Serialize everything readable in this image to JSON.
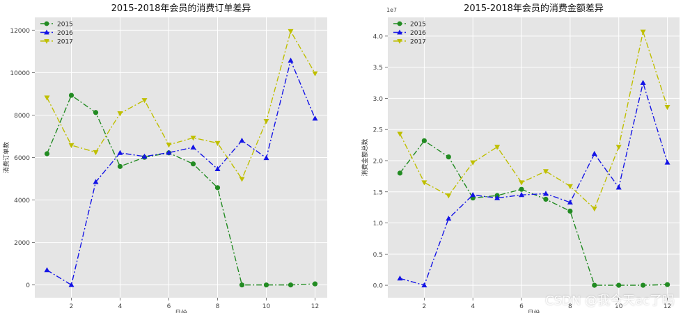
{
  "chart_data": [
    {
      "type": "line",
      "title": "2015-2018年会员的消费订单差异",
      "xlabel": "月份",
      "ylabel": "消费订单数",
      "x": [
        1,
        2,
        3,
        4,
        5,
        6,
        7,
        8,
        9,
        10,
        11,
        12
      ],
      "xticks": [
        "2",
        "4",
        "6",
        "8",
        "10",
        "12"
      ],
      "yticks": [
        "0",
        "2000",
        "4000",
        "6000",
        "8000",
        "10000",
        "12000"
      ],
      "xlim": [
        0.5,
        12.5
      ],
      "ylim": [
        -600,
        12600
      ],
      "grid": true,
      "legend": "top-left",
      "series": [
        {
          "name": "2015",
          "color": "#228B22",
          "marker": "circle",
          "values": [
            6180,
            8930,
            8120,
            5580,
            6010,
            6220,
            5700,
            4580,
            0,
            0,
            0,
            50
          ]
        },
        {
          "name": "2016",
          "color": "#1414e6",
          "marker": "triangle-up",
          "values": [
            700,
            0,
            4850,
            6220,
            6050,
            6230,
            6480,
            5460,
            6800,
            5980,
            10570,
            7840
          ]
        },
        {
          "name": "2017",
          "color": "#bfbf00",
          "marker": "triangle-down",
          "values": [
            8820,
            6580,
            6250,
            8080,
            8700,
            6600,
            6930,
            6680,
            4990,
            7720,
            11950,
            9960
          ]
        }
      ]
    },
    {
      "type": "line",
      "title": "2015-2018年会员的消费金额差异",
      "xlabel": "月份",
      "ylabel": "消费金额总数",
      "scale_label": "1e7",
      "x": [
        1,
        2,
        3,
        4,
        5,
        6,
        7,
        8,
        9,
        10,
        11,
        12
      ],
      "xticks": [
        "2",
        "4",
        "6",
        "8",
        "10",
        "12"
      ],
      "yticks": [
        "0.0",
        "0.5",
        "1.0",
        "1.5",
        "2.0",
        "2.5",
        "3.0",
        "3.5",
        "4.0"
      ],
      "xlim": [
        0.5,
        12.5
      ],
      "ylim": [
        -0.2,
        4.3
      ],
      "grid": true,
      "legend": "top-left",
      "series": [
        {
          "name": "2015",
          "color": "#228B22",
          "marker": "circle",
          "values": [
            1.8,
            2.32,
            2.06,
            1.4,
            1.44,
            1.54,
            1.38,
            1.19,
            0,
            0,
            0,
            0.01
          ]
        },
        {
          "name": "2016",
          "color": "#1414e6",
          "marker": "triangle-up",
          "values": [
            0.11,
            0,
            1.07,
            1.45,
            1.4,
            1.45,
            1.47,
            1.33,
            2.11,
            1.57,
            3.25,
            1.97
          ]
        },
        {
          "name": "2017",
          "color": "#bfbf00",
          "marker": "triangle-down",
          "values": [
            2.43,
            1.65,
            1.44,
            1.97,
            2.22,
            1.65,
            1.83,
            1.59,
            1.23,
            2.22,
            4.07,
            2.86
          ]
        }
      ]
    }
  ],
  "watermark": "CSDN @我今天ac了吗"
}
